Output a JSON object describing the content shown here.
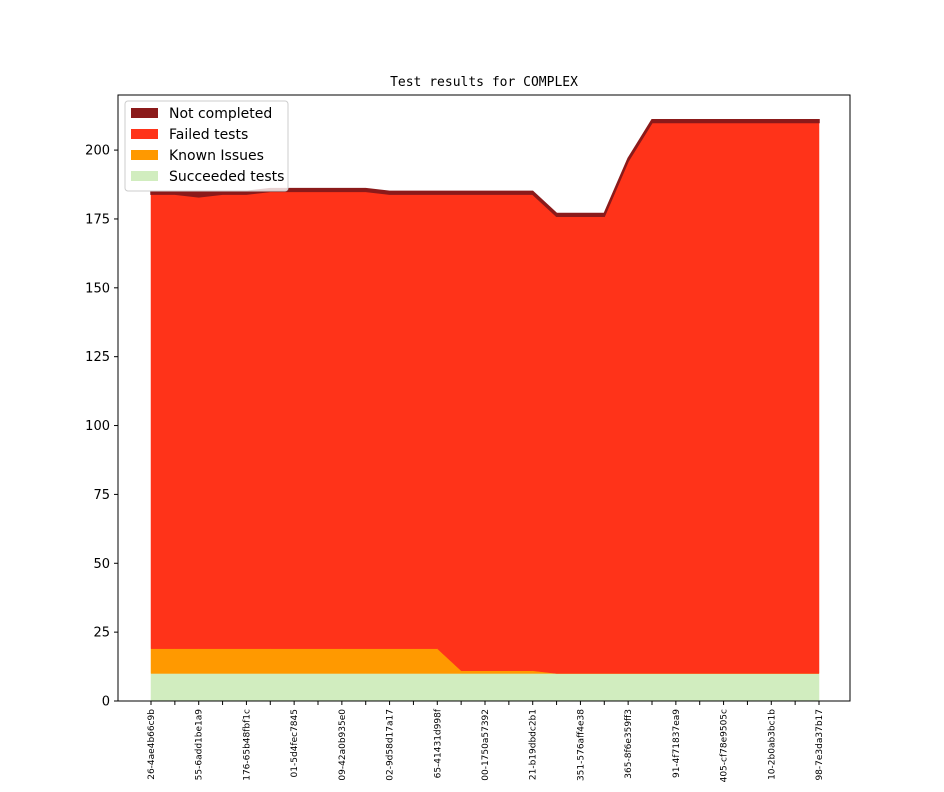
{
  "chart_data": {
    "type": "area",
    "stacked": true,
    "title": "Test results for COMPLEX",
    "xlabel": "",
    "ylabel": "",
    "ylim": [
      0,
      220
    ],
    "yticks": [
      0,
      25,
      50,
      75,
      100,
      125,
      150,
      175,
      200
    ],
    "legend_position": "top-left",
    "grid": false,
    "x_tick_labels": [
      "26-4ae4b66c9b",
      "55-6add1be1a9",
      "176-65b48fbf1c",
      "01-5d4fec7845",
      "09-42a0b935e0",
      "02-9d58d17a17",
      "65-41431d998f",
      "00-1750a57392",
      "21-b19dbdc2b1",
      "351-576aff4e38",
      "365-8f6e359ff3",
      "91-4f71837ea9",
      "405-cf78e9505c",
      "10-2b0ab3bc1b",
      "98-7e3da37b17"
    ],
    "x": [
      0,
      1,
      2,
      3,
      4,
      5,
      6,
      7,
      8,
      9,
      10,
      11,
      12,
      13,
      14,
      15,
      16,
      17,
      18,
      19,
      20,
      21,
      22,
      23,
      24,
      25,
      26,
      27,
      28
    ],
    "series": [
      {
        "name": "Succeeded tests",
        "color": "#d1edbf",
        "values": [
          10,
          10,
          10,
          10,
          10,
          10,
          10,
          10,
          10,
          10,
          10,
          10,
          10,
          10,
          10,
          10,
          10,
          10,
          10,
          10,
          10,
          10,
          10,
          10,
          10,
          10,
          10,
          10,
          10
        ]
      },
      {
        "name": "Known Issues",
        "color": "#ff9900",
        "values": [
          9,
          9,
          9,
          9,
          9,
          9,
          9,
          9,
          9,
          9,
          9,
          9,
          9,
          1,
          1,
          1,
          1,
          0,
          0,
          0,
          0,
          0,
          0,
          0,
          0,
          0,
          0,
          0,
          0
        ]
      },
      {
        "name": "Failed tests",
        "color": "#ff3319",
        "values": [
          165,
          165,
          164,
          165,
          165,
          166,
          166,
          166,
          166,
          166,
          165,
          165,
          165,
          173,
          173,
          173,
          173,
          166,
          166,
          166,
          186,
          200,
          200,
          200,
          200,
          200,
          200,
          200,
          200
        ]
      },
      {
        "name": "Not completed",
        "color": "#8b1a1a",
        "values": [
          1,
          1,
          2,
          1,
          1,
          1,
          1,
          1,
          1,
          1,
          1,
          1,
          1,
          1,
          1,
          1,
          1,
          1,
          1,
          1,
          1,
          1,
          1,
          1,
          1,
          1,
          1,
          1,
          1
        ]
      }
    ]
  }
}
